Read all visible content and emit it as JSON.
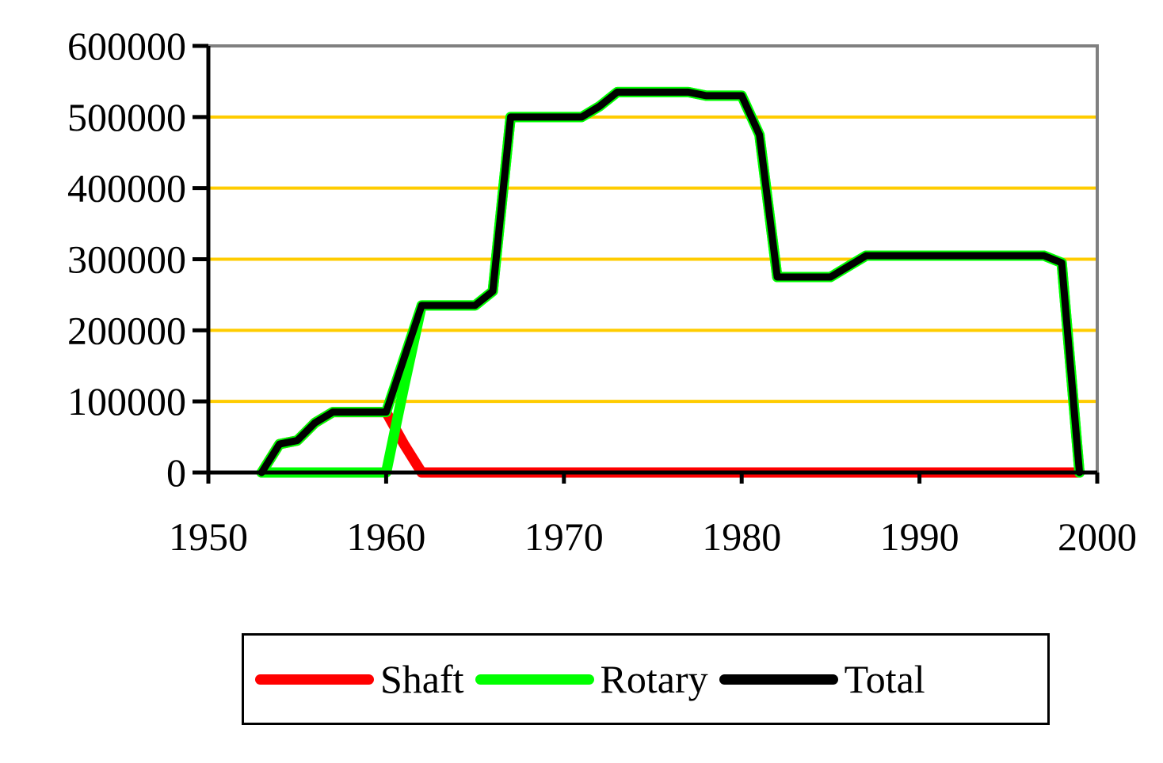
{
  "chart_data": {
    "type": "line",
    "title": "",
    "xlabel": "",
    "ylabel": "",
    "xlim": [
      1950,
      2000
    ],
    "ylim": [
      0,
      600000
    ],
    "x_ticks": [
      "1950",
      "1960",
      "1970",
      "1980",
      "1990",
      "2000"
    ],
    "y_ticks": [
      "0",
      "100000",
      "200000",
      "300000",
      "400000",
      "500000",
      "600000"
    ],
    "grid": {
      "horizontal": true,
      "color": "#FFCC00"
    },
    "legend_position": "bottom",
    "x": [
      1953,
      1954,
      1955,
      1956,
      1957,
      1958,
      1959,
      1960,
      1961,
      1962,
      1963,
      1964,
      1965,
      1966,
      1967,
      1968,
      1969,
      1970,
      1971,
      1972,
      1973,
      1974,
      1975,
      1976,
      1977,
      1978,
      1979,
      1980,
      1981,
      1982,
      1983,
      1984,
      1985,
      1986,
      1987,
      1988,
      1989,
      1990,
      1991,
      1992,
      1993,
      1994,
      1995,
      1996,
      1997,
      1998,
      1999
    ],
    "series": [
      {
        "name": "Shaft",
        "color": "#FF0000",
        "values": [
          0,
          40000,
          45000,
          70000,
          85000,
          85000,
          85000,
          85000,
          40000,
          0,
          0,
          0,
          0,
          0,
          0,
          0,
          0,
          0,
          0,
          0,
          0,
          0,
          0,
          0,
          0,
          0,
          0,
          0,
          0,
          0,
          0,
          0,
          0,
          0,
          0,
          0,
          0,
          0,
          0,
          0,
          0,
          0,
          0,
          0,
          0,
          0,
          0
        ]
      },
      {
        "name": "Rotary",
        "color": "#00FF00",
        "values": [
          0,
          0,
          0,
          0,
          0,
          0,
          0,
          0,
          120000,
          235000,
          235000,
          235000,
          235000,
          255000,
          500000,
          500000,
          500000,
          500000,
          500000,
          515000,
          535000,
          535000,
          535000,
          535000,
          535000,
          530000,
          530000,
          530000,
          475000,
          275000,
          275000,
          275000,
          275000,
          290000,
          305000,
          305000,
          305000,
          305000,
          305000,
          305000,
          305000,
          305000,
          305000,
          305000,
          305000,
          295000,
          0
        ]
      },
      {
        "name": "Total",
        "color": "#000000",
        "values": [
          0,
          40000,
          45000,
          70000,
          85000,
          85000,
          85000,
          85000,
          160000,
          235000,
          235000,
          235000,
          235000,
          255000,
          500000,
          500000,
          500000,
          500000,
          500000,
          515000,
          535000,
          535000,
          535000,
          535000,
          535000,
          530000,
          530000,
          530000,
          475000,
          275000,
          275000,
          275000,
          275000,
          290000,
          305000,
          305000,
          305000,
          305000,
          305000,
          305000,
          305000,
          305000,
          305000,
          305000,
          305000,
          295000,
          0
        ]
      }
    ]
  },
  "legend": {
    "items": [
      {
        "label": "Shaft",
        "color": "#FF0000"
      },
      {
        "label": "Rotary",
        "color": "#00FF00"
      },
      {
        "label": "Total",
        "color": "#000000"
      }
    ]
  }
}
